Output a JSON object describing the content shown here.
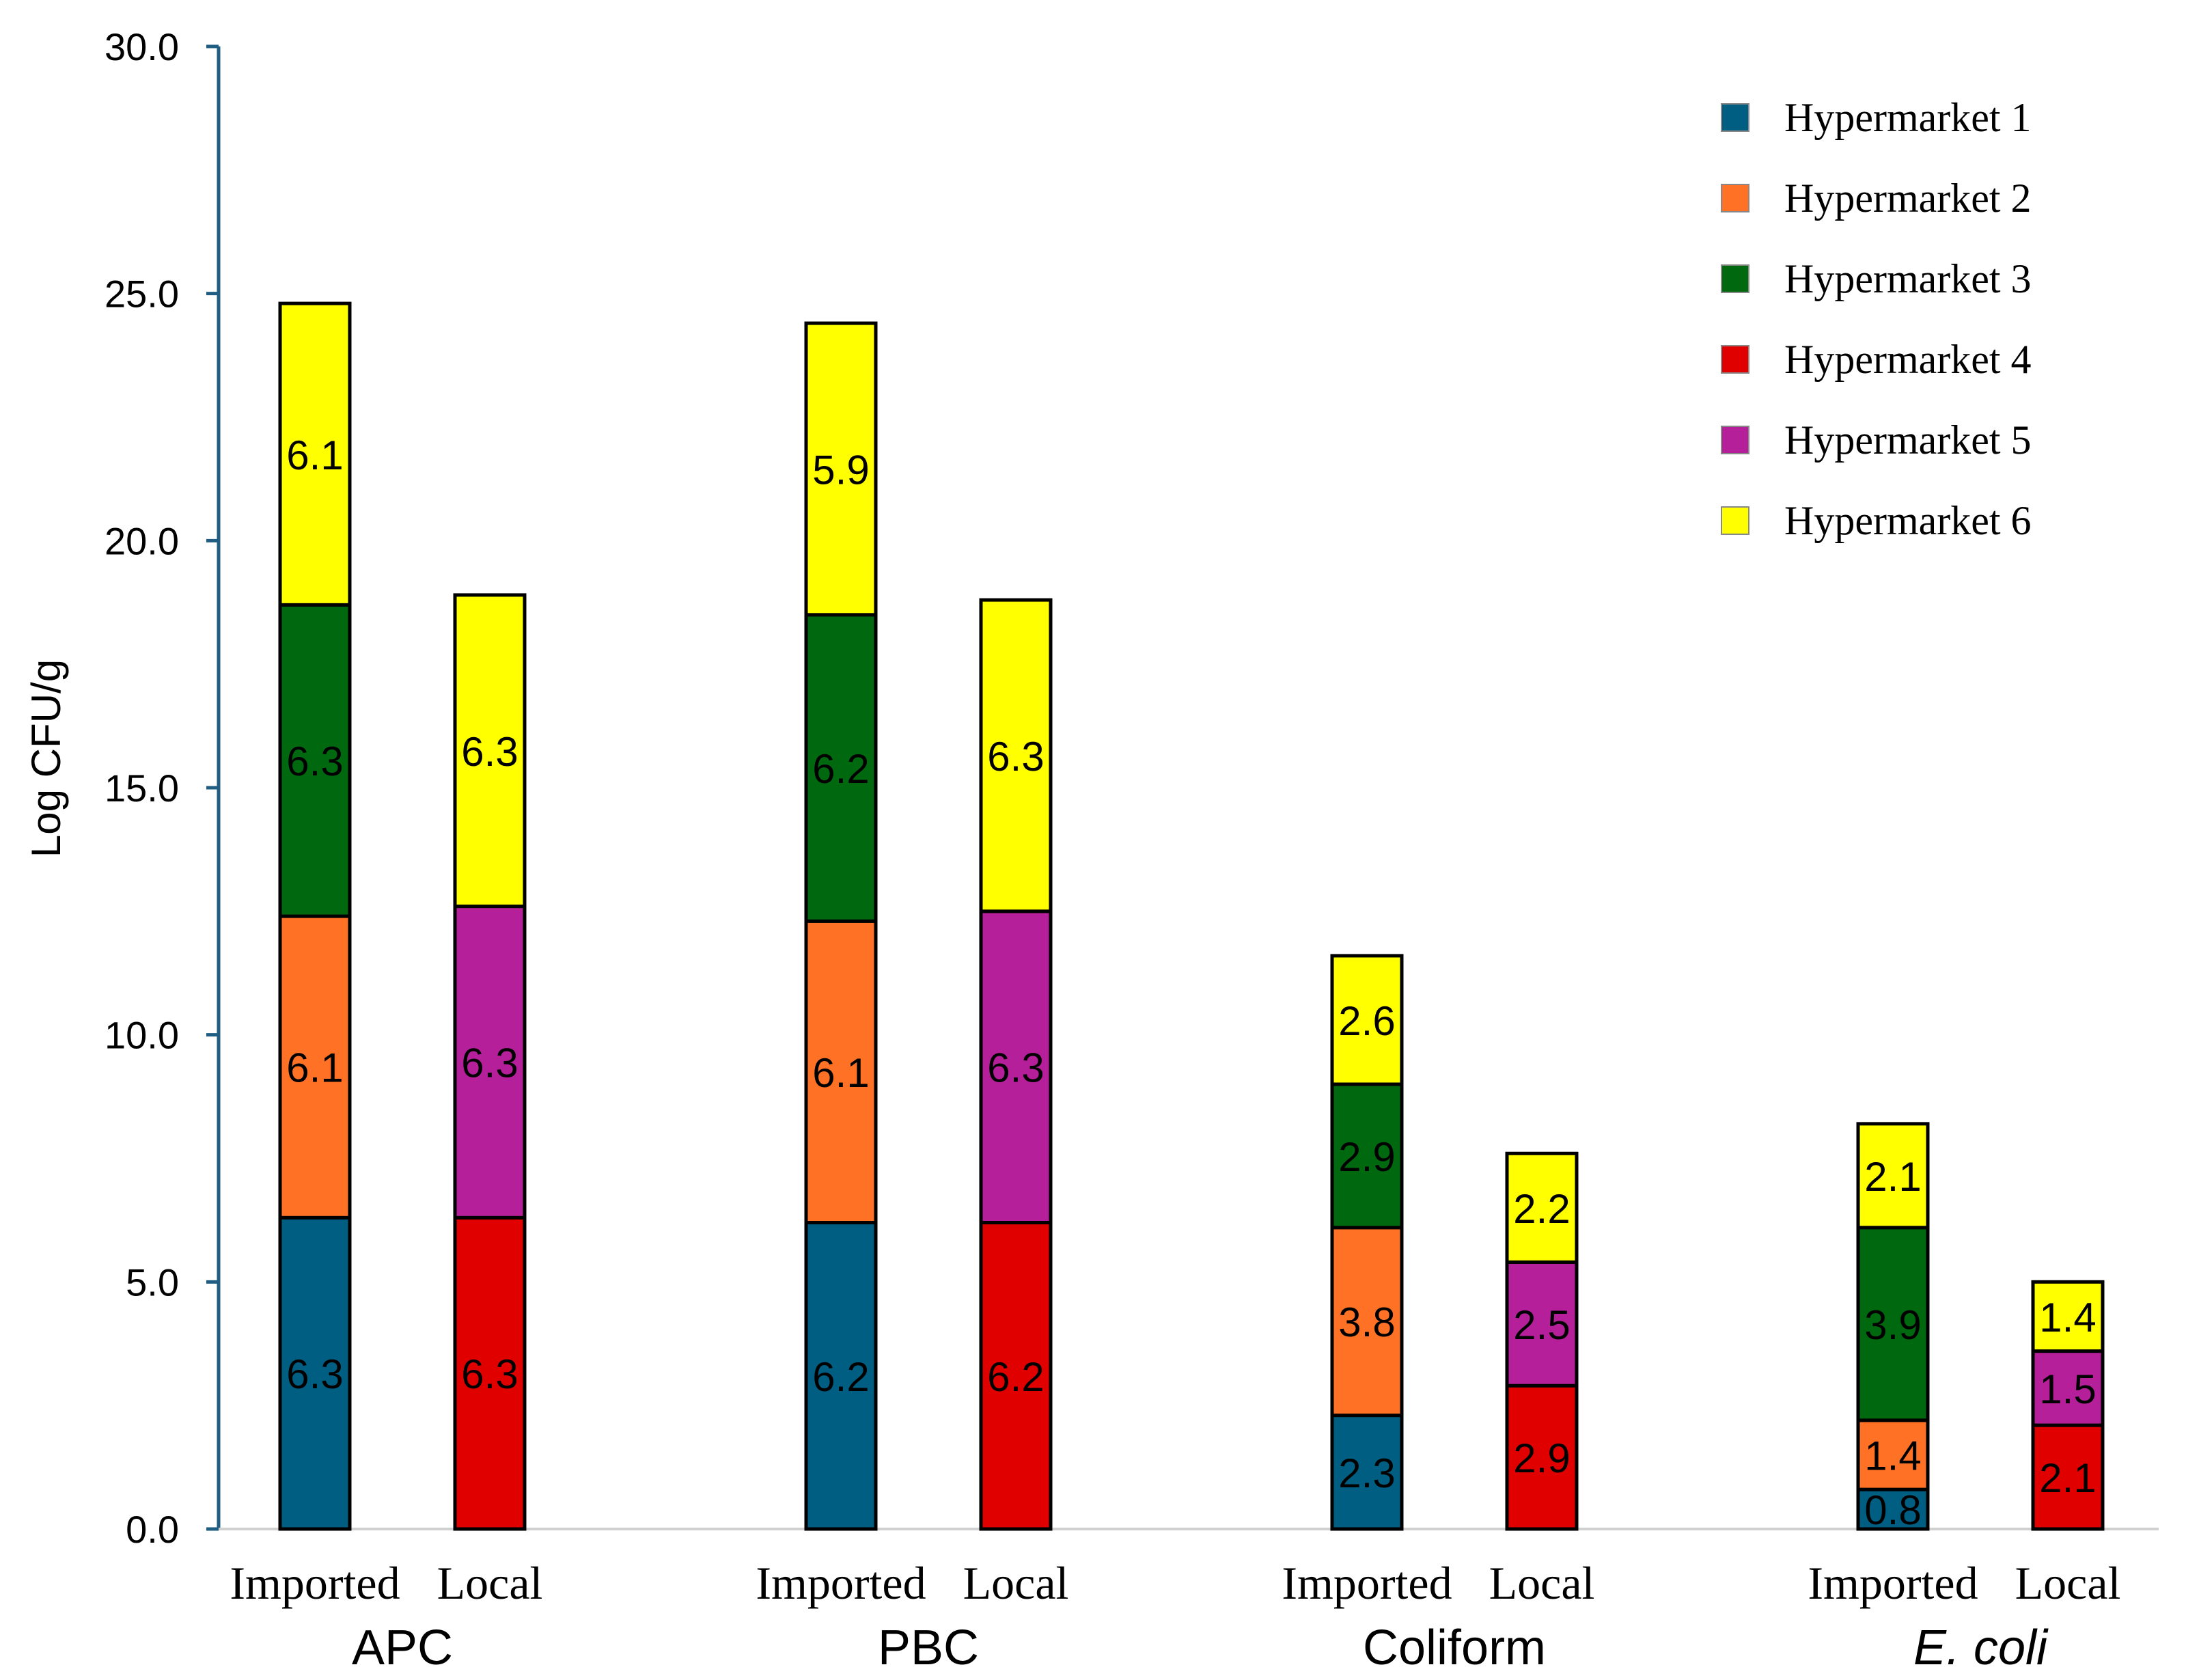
{
  "chart_data": {
    "type": "bar",
    "stacked": true,
    "ylabel": "Log CFU/g",
    "ylim": [
      0,
      30
    ],
    "yticks": [
      "0.0",
      "5.0",
      "10.0",
      "15.0",
      "20.0",
      "25.0",
      "30.0"
    ],
    "grid": false,
    "legend_position": "top-right",
    "groups": [
      {
        "label": "APC",
        "italic": false,
        "bars": [
          {
            "label": "Imported",
            "segments": [
              {
                "series": "Hypermarket 1",
                "value": 6.3
              },
              {
                "series": "Hypermarket 2",
                "value": 6.1
              },
              {
                "series": "Hypermarket 3",
                "value": 6.3
              },
              {
                "series": "Hypermarket 6",
                "value": 6.1
              }
            ]
          },
          {
            "label": "Local",
            "segments": [
              {
                "series": "Hypermarket 4",
                "value": 6.3
              },
              {
                "series": "Hypermarket 5",
                "value": 6.3
              },
              {
                "series": "Hypermarket 6",
                "value": 6.3
              }
            ]
          }
        ]
      },
      {
        "label": "PBC",
        "italic": false,
        "bars": [
          {
            "label": "Imported",
            "segments": [
              {
                "series": "Hypermarket 1",
                "value": 6.2
              },
              {
                "series": "Hypermarket 2",
                "value": 6.1
              },
              {
                "series": "Hypermarket 3",
                "value": 6.2
              },
              {
                "series": "Hypermarket 6",
                "value": 5.9
              }
            ]
          },
          {
            "label": "Local",
            "segments": [
              {
                "series": "Hypermarket 4",
                "value": 6.2
              },
              {
                "series": "Hypermarket 5",
                "value": 6.3
              },
              {
                "series": "Hypermarket 6",
                "value": 6.3
              }
            ]
          }
        ]
      },
      {
        "label": "Coliform",
        "italic": false,
        "bars": [
          {
            "label": "Imported",
            "segments": [
              {
                "series": "Hypermarket 1",
                "value": 2.3
              },
              {
                "series": "Hypermarket 2",
                "value": 3.8
              },
              {
                "series": "Hypermarket 3",
                "value": 2.9
              },
              {
                "series": "Hypermarket 6",
                "value": 2.6
              }
            ]
          },
          {
            "label": "Local",
            "segments": [
              {
                "series": "Hypermarket 4",
                "value": 2.9
              },
              {
                "series": "Hypermarket 5",
                "value": 2.5
              },
              {
                "series": "Hypermarket 6",
                "value": 2.2
              }
            ]
          }
        ]
      },
      {
        "label": "E. coli",
        "italic": true,
        "bars": [
          {
            "label": "Imported",
            "segments": [
              {
                "series": "Hypermarket 1",
                "value": 0.8
              },
              {
                "series": "Hypermarket 2",
                "value": 1.4
              },
              {
                "series": "Hypermarket 3",
                "value": 3.9
              },
              {
                "series": "Hypermarket 6",
                "value": 2.1
              }
            ]
          },
          {
            "label": "Local",
            "segments": [
              {
                "series": "Hypermarket 4",
                "value": 2.1
              },
              {
                "series": "Hypermarket 5",
                "value": 1.5
              },
              {
                "series": "Hypermarket 6",
                "value": 1.4
              }
            ]
          }
        ]
      }
    ],
    "legend": [
      {
        "name": "Hypermarket 1",
        "color": "#005E82"
      },
      {
        "name": "Hypermarket 2",
        "color": "#FF7226"
      },
      {
        "name": "Hypermarket 3",
        "color": "#00680E"
      },
      {
        "name": "Hypermarket 4",
        "color": "#E10000"
      },
      {
        "name": "Hypermarket 5",
        "color": "#B5209A"
      },
      {
        "name": "Hypermarket 6",
        "color": "#FFFF00"
      }
    ]
  }
}
